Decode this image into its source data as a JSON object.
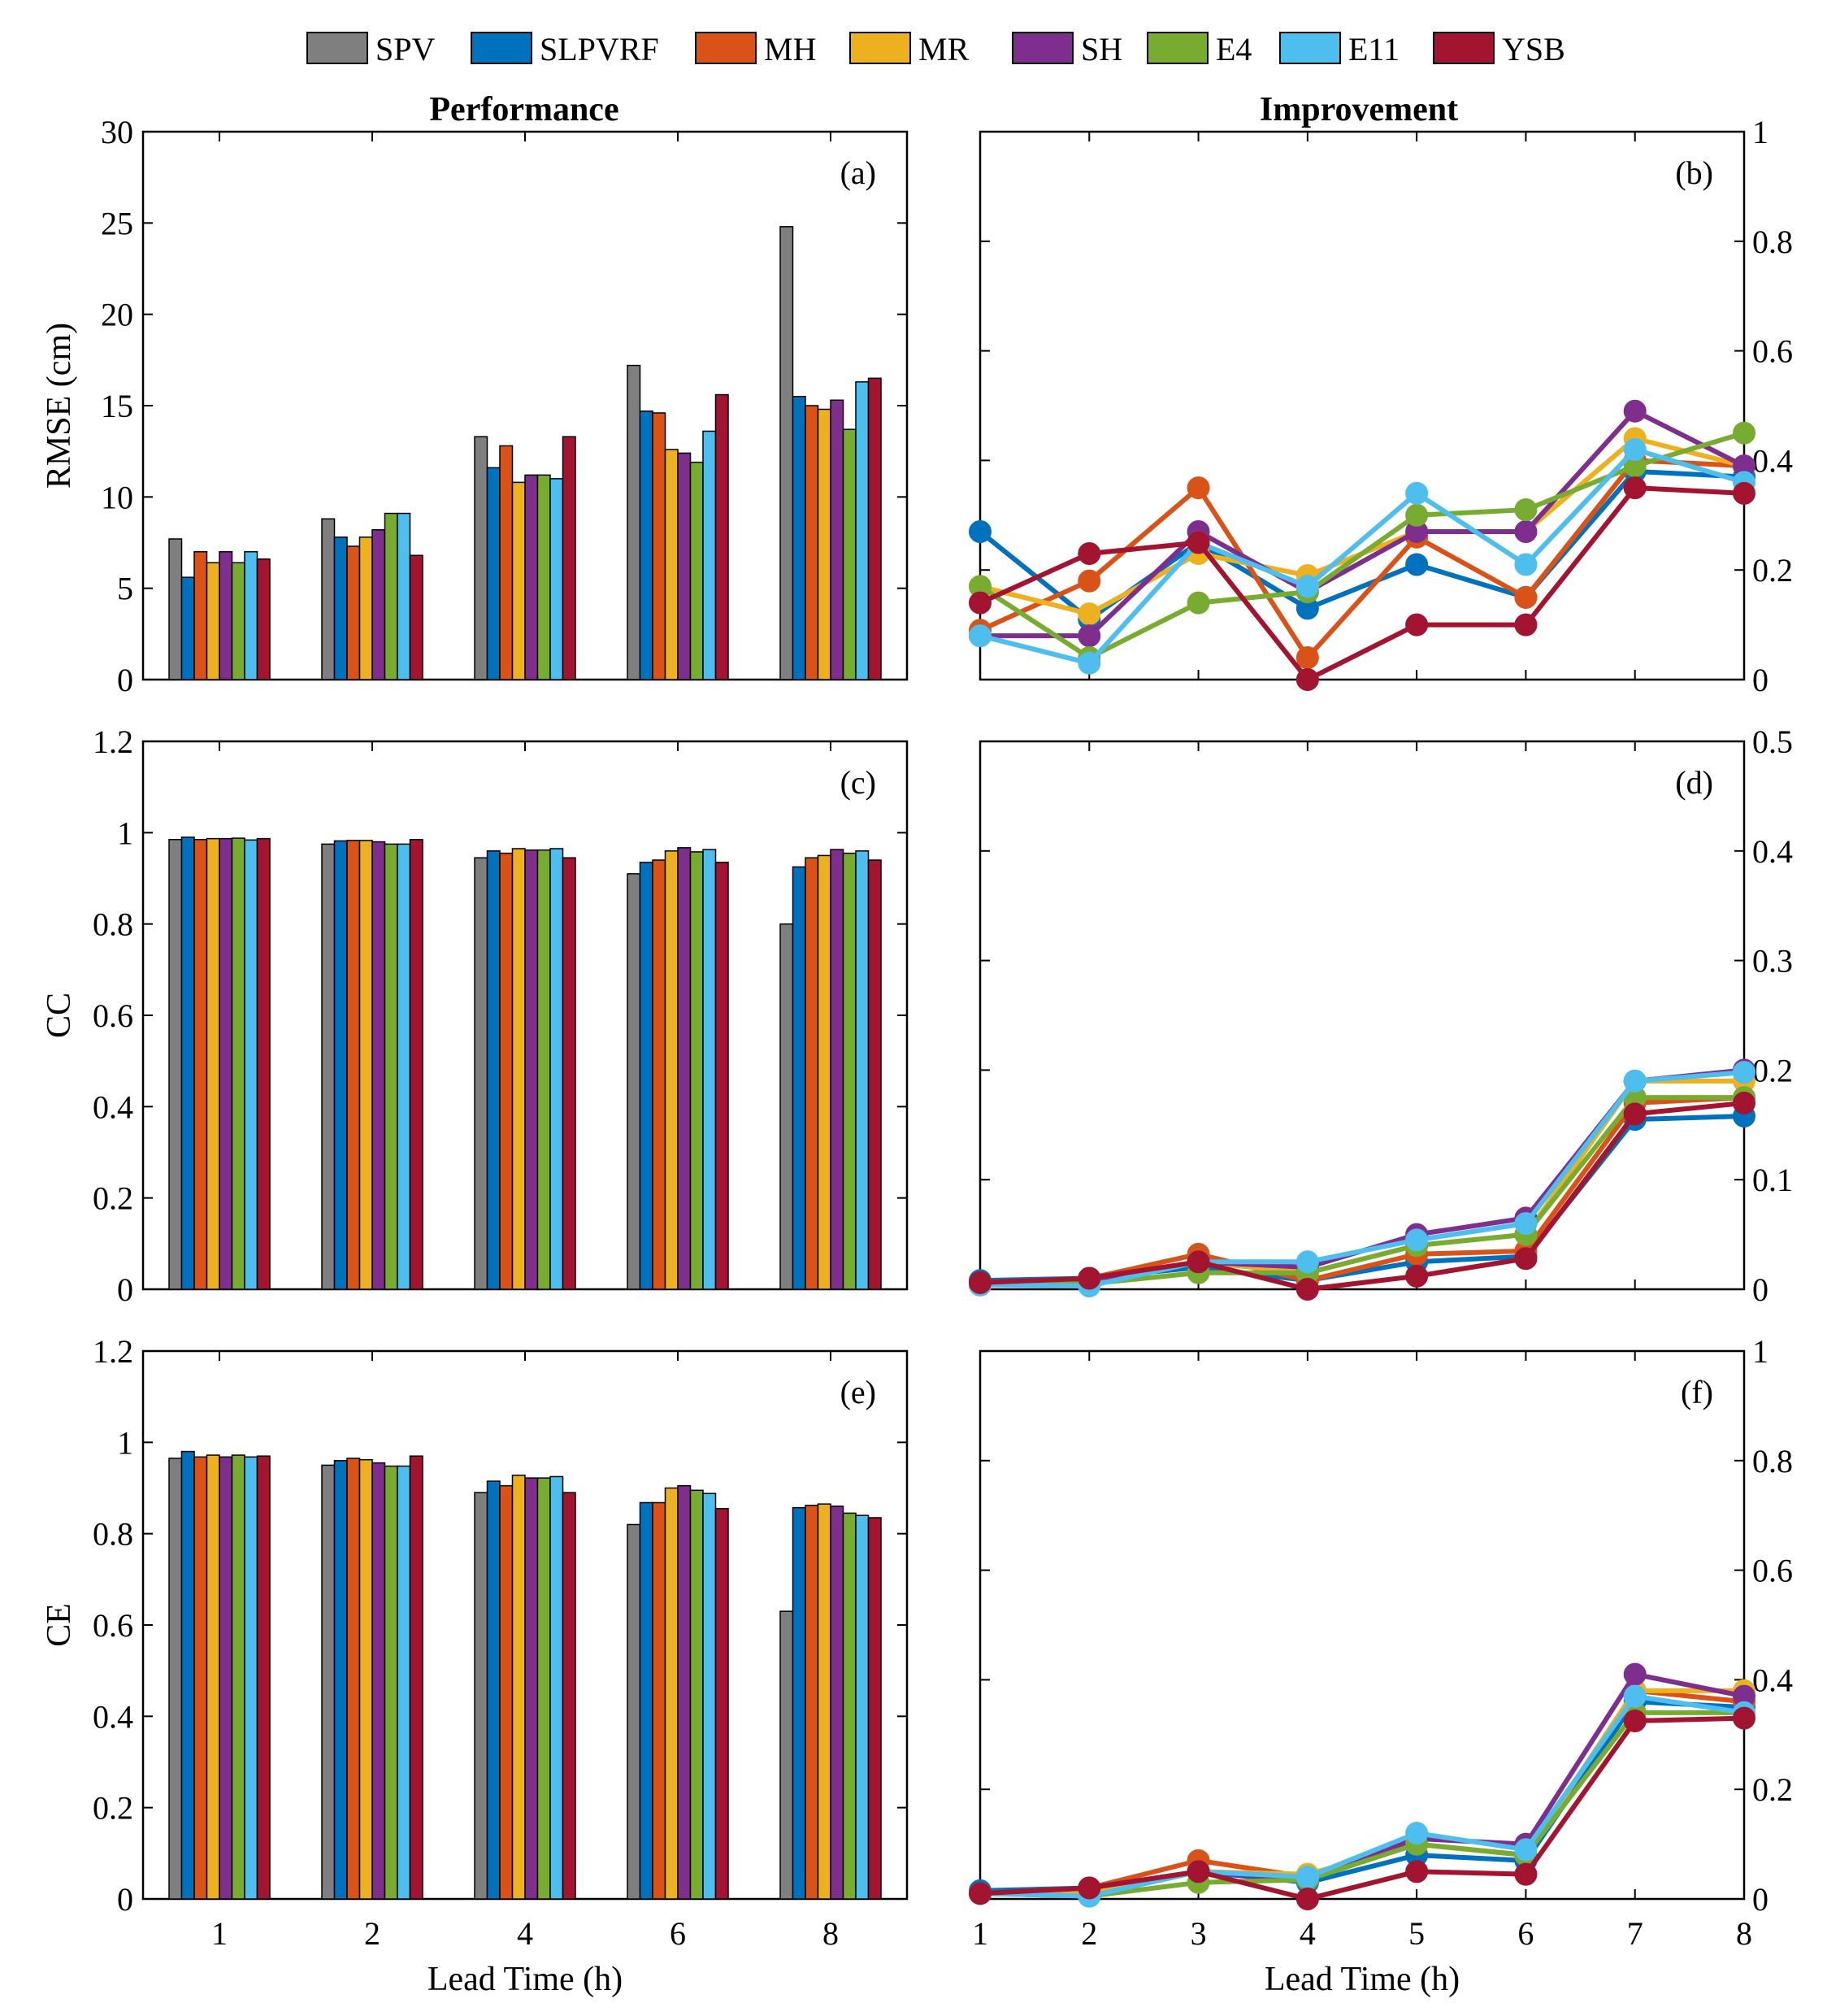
{
  "legend": [
    {
      "name": "SPV",
      "color": "#7f7f7f"
    },
    {
      "name": "SLPVRF",
      "color": "#0072bd"
    },
    {
      "name": "MH",
      "color": "#d95319"
    },
    {
      "name": "MR",
      "color": "#edb120"
    },
    {
      "name": "SH",
      "color": "#7e2f8e"
    },
    {
      "name": "E4",
      "color": "#77ac30"
    },
    {
      "name": "E11",
      "color": "#4dbeee"
    },
    {
      "name": "YSB",
      "color": "#a2142f"
    }
  ],
  "column_titles": {
    "left": "Performance",
    "right": "Improvement"
  },
  "chart_data": [
    {
      "id": "a",
      "label": "(a)",
      "type": "bar",
      "categories": [
        "1",
        "2",
        "4",
        "6",
        "8"
      ],
      "ylabel": "RMSE (cm)",
      "xlabel": "",
      "ylim": [
        0,
        30
      ],
      "yticks": [
        "0",
        "5",
        "10",
        "15",
        "20",
        "25",
        "30"
      ],
      "series": [
        {
          "name": "SPV",
          "values": [
            7.7,
            8.8,
            13.3,
            17.2,
            24.8
          ]
        },
        {
          "name": "SLPVRF",
          "values": [
            5.6,
            7.8,
            11.6,
            14.7,
            15.5
          ]
        },
        {
          "name": "MH",
          "values": [
            7.0,
            7.3,
            12.8,
            14.6,
            15.0
          ]
        },
        {
          "name": "MR",
          "values": [
            6.4,
            7.8,
            10.8,
            12.6,
            14.8
          ]
        },
        {
          "name": "SH",
          "values": [
            7.0,
            8.2,
            11.2,
            12.4,
            15.3
          ]
        },
        {
          "name": "E4",
          "values": [
            6.4,
            9.1,
            11.2,
            11.9,
            13.7
          ]
        },
        {
          "name": "E11",
          "values": [
            7.0,
            9.1,
            11.0,
            13.6,
            16.3
          ]
        },
        {
          "name": "YSB",
          "values": [
            6.6,
            6.8,
            13.3,
            15.6,
            16.5
          ]
        }
      ]
    },
    {
      "id": "b",
      "label": "(b)",
      "type": "line",
      "x": [
        1,
        2,
        3,
        4,
        5,
        6,
        7,
        8
      ],
      "xticks": [
        "1",
        "2",
        "3",
        "4",
        "5",
        "6",
        "7",
        "8"
      ],
      "ylabel": "",
      "xlabel": "",
      "ylim": [
        0,
        1
      ],
      "yticks": [
        "0",
        "0.2",
        "0.4",
        "0.6",
        "0.8",
        "1"
      ],
      "series": [
        {
          "name": "SLPVRF",
          "values": [
            0.27,
            0.11,
            0.25,
            0.13,
            0.21,
            0.15,
            0.38,
            0.37
          ]
        },
        {
          "name": "MH",
          "values": [
            0.09,
            0.18,
            0.35,
            0.04,
            0.26,
            0.15,
            0.4,
            0.39
          ]
        },
        {
          "name": "MR",
          "values": [
            0.17,
            0.12,
            0.23,
            0.19,
            0.27,
            0.27,
            0.44,
            0.39
          ]
        },
        {
          "name": "SH",
          "values": [
            0.08,
            0.08,
            0.27,
            0.16,
            0.27,
            0.27,
            0.49,
            0.39
          ]
        },
        {
          "name": "E4",
          "values": [
            0.17,
            0.04,
            0.14,
            0.16,
            0.3,
            0.31,
            0.39,
            0.45
          ]
        },
        {
          "name": "E11",
          "values": [
            0.08,
            0.03,
            0.25,
            0.17,
            0.34,
            0.21,
            0.42,
            0.36
          ]
        },
        {
          "name": "YSB",
          "values": [
            0.14,
            0.23,
            0.25,
            0.0,
            0.1,
            0.1,
            0.35,
            0.34
          ]
        }
      ]
    },
    {
      "id": "c",
      "label": "(c)",
      "type": "bar",
      "categories": [
        "1",
        "2",
        "4",
        "6",
        "8"
      ],
      "ylabel": "CC",
      "xlabel": "",
      "ylim": [
        0,
        1.2
      ],
      "yticks": [
        "0",
        "0.2",
        "0.4",
        "0.6",
        "0.8",
        "1",
        "1.2"
      ],
      "series": [
        {
          "name": "SPV",
          "values": [
            0.985,
            0.975,
            0.945,
            0.91,
            0.8
          ]
        },
        {
          "name": "SLPVRF",
          "values": [
            0.99,
            0.982,
            0.96,
            0.935,
            0.925
          ]
        },
        {
          "name": "MH",
          "values": [
            0.985,
            0.983,
            0.955,
            0.94,
            0.945
          ]
        },
        {
          "name": "MR",
          "values": [
            0.987,
            0.983,
            0.965,
            0.96,
            0.95
          ]
        },
        {
          "name": "SH",
          "values": [
            0.987,
            0.98,
            0.962,
            0.967,
            0.963
          ]
        },
        {
          "name": "E4",
          "values": [
            0.988,
            0.975,
            0.962,
            0.958,
            0.955
          ]
        },
        {
          "name": "E11",
          "values": [
            0.984,
            0.975,
            0.965,
            0.963,
            0.96
          ]
        },
        {
          "name": "YSB",
          "values": [
            0.987,
            0.985,
            0.945,
            0.935,
            0.94
          ]
        }
      ]
    },
    {
      "id": "d",
      "label": "(d)",
      "type": "line",
      "x": [
        1,
        2,
        3,
        4,
        5,
        6,
        7,
        8
      ],
      "xticks": [
        "1",
        "2",
        "3",
        "4",
        "5",
        "6",
        "7",
        "8"
      ],
      "ylabel": "",
      "xlabel": "",
      "ylim": [
        0,
        0.5
      ],
      "yticks": [
        "0",
        "0.1",
        "0.2",
        "0.3",
        "0.4",
        "0.5"
      ],
      "series": [
        {
          "name": "SLPVRF",
          "values": [
            0.008,
            0.01,
            0.02,
            0.008,
            0.025,
            0.03,
            0.155,
            0.158
          ]
        },
        {
          "name": "MH",
          "values": [
            0.004,
            0.01,
            0.032,
            0.008,
            0.032,
            0.035,
            0.17,
            0.175
          ]
        },
        {
          "name": "MR",
          "values": [
            0.004,
            0.008,
            0.025,
            0.015,
            0.04,
            0.05,
            0.19,
            0.19
          ]
        },
        {
          "name": "SH",
          "values": [
            0.004,
            0.007,
            0.025,
            0.02,
            0.05,
            0.065,
            0.19,
            0.2
          ]
        },
        {
          "name": "E4",
          "values": [
            0.004,
            0.005,
            0.015,
            0.015,
            0.04,
            0.05,
            0.175,
            0.175
          ]
        },
        {
          "name": "E11",
          "values": [
            0.004,
            0.003,
            0.025,
            0.025,
            0.045,
            0.06,
            0.19,
            0.198
          ]
        },
        {
          "name": "YSB",
          "values": [
            0.006,
            0.01,
            0.025,
            0.0,
            0.012,
            0.028,
            0.16,
            0.17
          ]
        }
      ]
    },
    {
      "id": "e",
      "label": "(e)",
      "type": "bar",
      "categories": [
        "1",
        "2",
        "4",
        "6",
        "8"
      ],
      "ylabel": "CE",
      "xlabel": "Lead Time (h)",
      "ylim": [
        0,
        1.2
      ],
      "yticks": [
        "0",
        "0.2",
        "0.4",
        "0.6",
        "0.8",
        "1",
        "1.2"
      ],
      "series": [
        {
          "name": "SPV",
          "values": [
            0.965,
            0.95,
            0.89,
            0.82,
            0.63
          ]
        },
        {
          "name": "SLPVRF",
          "values": [
            0.98,
            0.96,
            0.915,
            0.868,
            0.857
          ]
        },
        {
          "name": "MH",
          "values": [
            0.968,
            0.965,
            0.905,
            0.868,
            0.862
          ]
        },
        {
          "name": "MR",
          "values": [
            0.972,
            0.962,
            0.928,
            0.9,
            0.865
          ]
        },
        {
          "name": "SH",
          "values": [
            0.968,
            0.955,
            0.922,
            0.905,
            0.86
          ]
        },
        {
          "name": "E4",
          "values": [
            0.972,
            0.948,
            0.922,
            0.895,
            0.845
          ]
        },
        {
          "name": "E11",
          "values": [
            0.968,
            0.948,
            0.925,
            0.888,
            0.84
          ]
        },
        {
          "name": "YSB",
          "values": [
            0.97,
            0.97,
            0.89,
            0.855,
            0.835
          ]
        }
      ]
    },
    {
      "id": "f",
      "label": "(f)",
      "type": "line",
      "x": [
        1,
        2,
        3,
        4,
        5,
        6,
        7,
        8
      ],
      "xticks": [
        "1",
        "2",
        "3",
        "4",
        "5",
        "6",
        "7",
        "8"
      ],
      "ylabel": "",
      "xlabel": "Lead Time (h)",
      "ylim": [
        0,
        1
      ],
      "yticks": [
        "0",
        "0.2",
        "0.4",
        "0.6",
        "0.8",
        "1"
      ],
      "series": [
        {
          "name": "SLPVRF",
          "values": [
            0.015,
            0.02,
            0.05,
            0.03,
            0.08,
            0.07,
            0.36,
            0.35
          ]
        },
        {
          "name": "MH",
          "values": [
            0.01,
            0.02,
            0.07,
            0.04,
            0.1,
            0.08,
            0.38,
            0.36
          ]
        },
        {
          "name": "MR",
          "values": [
            0.01,
            0.015,
            0.05,
            0.045,
            0.1,
            0.08,
            0.38,
            0.38
          ]
        },
        {
          "name": "SH",
          "values": [
            0.01,
            0.02,
            0.05,
            0.035,
            0.11,
            0.1,
            0.41,
            0.37
          ]
        },
        {
          "name": "E4",
          "values": [
            0.01,
            0.005,
            0.03,
            0.035,
            0.1,
            0.08,
            0.34,
            0.34
          ]
        },
        {
          "name": "E11",
          "values": [
            0.01,
            0.005,
            0.05,
            0.04,
            0.12,
            0.09,
            0.37,
            0.34
          ]
        },
        {
          "name": "YSB",
          "values": [
            0.01,
            0.02,
            0.05,
            0.0,
            0.05,
            0.045,
            0.325,
            0.33
          ]
        }
      ]
    }
  ]
}
